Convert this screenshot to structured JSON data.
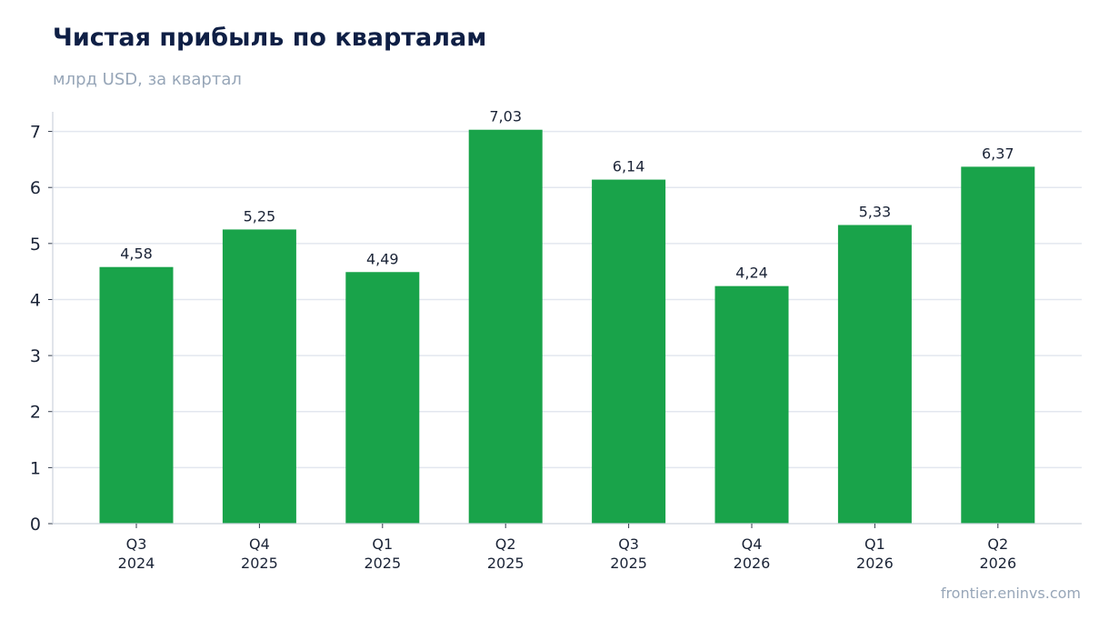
{
  "chart_data": {
    "type": "bar",
    "title": "Чистая прибыль по кварталам",
    "subtitle": "млрд USD, за квартал",
    "categories": [
      [
        "Q3",
        "2024"
      ],
      [
        "Q4",
        "2025"
      ],
      [
        "Q1",
        "2025"
      ],
      [
        "Q2",
        "2025"
      ],
      [
        "Q3",
        "2025"
      ],
      [
        "Q4",
        "2026"
      ],
      [
        "Q1",
        "2026"
      ],
      [
        "Q2",
        "2026"
      ]
    ],
    "values": [
      4.58,
      5.25,
      4.49,
      7.03,
      6.14,
      4.24,
      5.33,
      6.37
    ],
    "data_labels": [
      "4,58",
      "5,25",
      "4,49",
      "7,03",
      "6,14",
      "4,24",
      "5,33",
      "6,37"
    ],
    "ylim": [
      0,
      7.35
    ],
    "yticks": [
      0,
      1,
      2,
      3,
      4,
      5,
      6,
      7
    ],
    "grid": "horizontal",
    "legend": "none",
    "xlabel": "",
    "ylabel": "",
    "bar_color": "#19a34a",
    "grid_color": "#e3e7ef",
    "axis_color": "#cdd3dd"
  },
  "footer": {
    "source": "frontier.eninvs.com"
  }
}
